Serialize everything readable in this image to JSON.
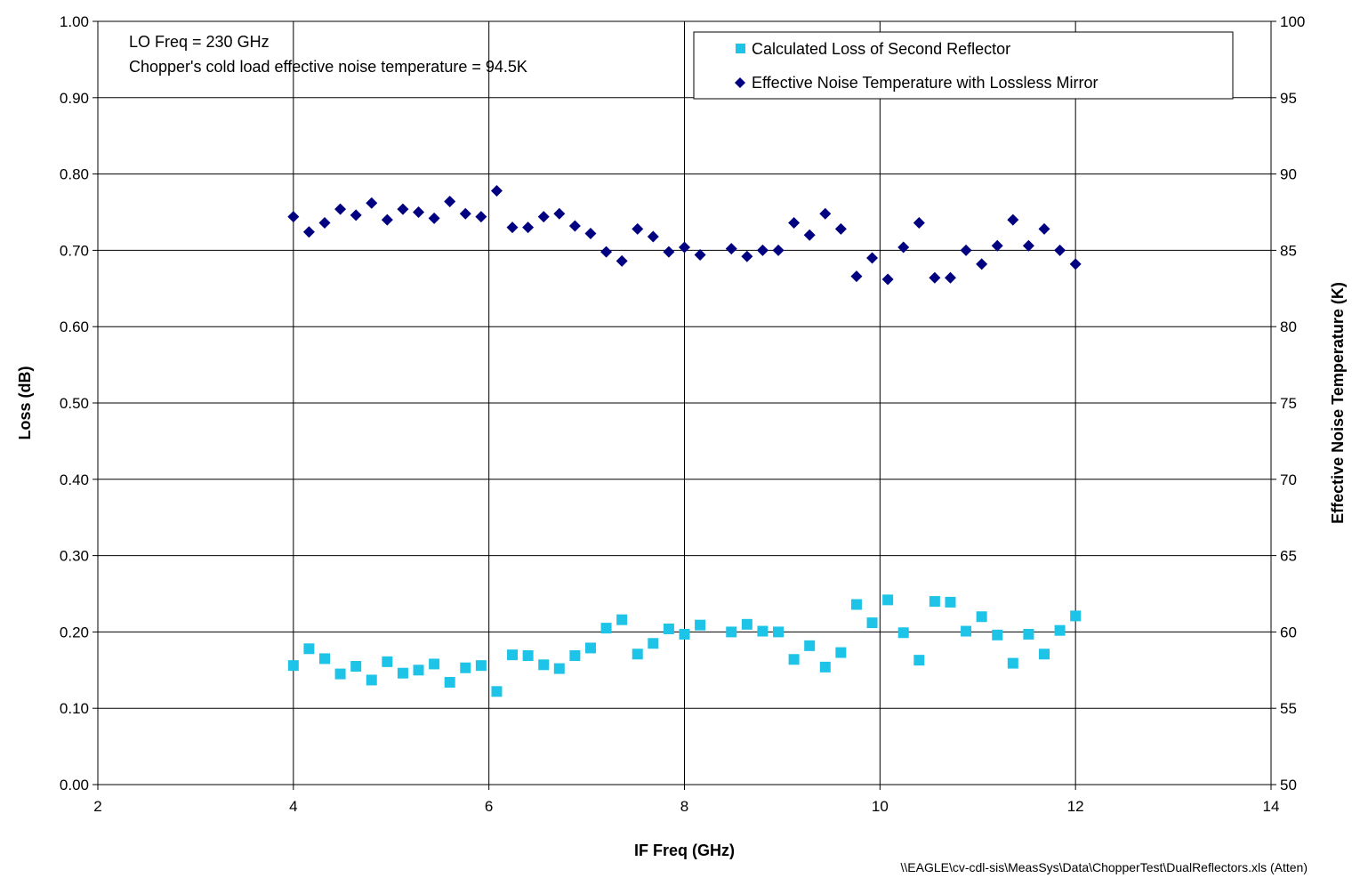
{
  "chart_data": {
    "type": "scatter",
    "title": "",
    "xlabel": "IF Freq (GHz)",
    "ylabel_left": "Loss (dB)",
    "ylabel_right": "Effective Noise Temperature (K)",
    "xlim": [
      2,
      14
    ],
    "x_ticks": [
      2,
      4,
      6,
      8,
      10,
      12,
      14
    ],
    "ylim_left": [
      0,
      1
    ],
    "y_ticks_left": [
      "0.00",
      "0.10",
      "0.20",
      "0.30",
      "0.40",
      "0.50",
      "0.60",
      "0.70",
      "0.80",
      "0.90",
      "1.00"
    ],
    "ylim_right": [
      50,
      100
    ],
    "y_ticks_right": [
      "50",
      "55",
      "60",
      "65",
      "70",
      "75",
      "80",
      "85",
      "90",
      "95",
      "100"
    ],
    "grid": true,
    "legend_position": "top-right",
    "annotations": [
      "LO Freq = 230 GHz",
      "Chopper's cold load effective noise temperature = 94.5K"
    ],
    "footer": "\\\\EAGLE\\cv-cdl-sis\\MeasSys\\Data\\ChopperTest\\DualReflectors.xls (Atten)",
    "series": [
      {
        "name": "Calculated Loss of Second Reflector",
        "axis": "left",
        "marker": "square",
        "color": "#1EC4E8",
        "x": [
          4.0,
          4.16,
          4.32,
          4.48,
          4.64,
          4.8,
          4.96,
          5.12,
          5.28,
          5.44,
          5.6,
          5.76,
          5.92,
          6.08,
          6.24,
          6.4,
          6.56,
          6.72,
          6.88,
          7.04,
          7.2,
          7.36,
          7.52,
          7.68,
          7.84,
          8.0,
          8.16,
          8.48,
          8.64,
          8.8,
          8.96,
          9.12,
          9.28,
          9.44,
          9.6,
          9.76,
          9.92,
          10.08,
          10.24,
          10.4,
          10.56,
          10.72,
          10.88,
          11.04,
          11.2,
          11.36,
          11.52,
          11.68,
          11.84,
          12.0
        ],
        "y": [
          0.156,
          0.178,
          0.165,
          0.145,
          0.155,
          0.137,
          0.161,
          0.146,
          0.15,
          0.158,
          0.134,
          0.153,
          0.156,
          0.122,
          0.17,
          0.169,
          0.157,
          0.152,
          0.169,
          0.179,
          0.205,
          0.216,
          0.171,
          0.185,
          0.204,
          0.197,
          0.209,
          0.2,
          0.21,
          0.201,
          0.2,
          0.164,
          0.182,
          0.154,
          0.173,
          0.236,
          0.212,
          0.242,
          0.199,
          0.163,
          0.24,
          0.239,
          0.201,
          0.22,
          0.196,
          0.159,
          0.197,
          0.171,
          0.202,
          0.221
        ]
      },
      {
        "name": "Effective Noise Temperature with Lossless Mirror",
        "axis": "right",
        "marker": "diamond",
        "color": "#000080",
        "x": [
          4.0,
          4.16,
          4.32,
          4.48,
          4.64,
          4.8,
          4.96,
          5.12,
          5.28,
          5.44,
          5.6,
          5.76,
          5.92,
          6.08,
          6.24,
          6.4,
          6.56,
          6.72,
          6.88,
          7.04,
          7.2,
          7.36,
          7.52,
          7.68,
          7.84,
          8.0,
          8.16,
          8.48,
          8.64,
          8.8,
          8.96,
          9.12,
          9.28,
          9.44,
          9.6,
          9.76,
          9.92,
          10.08,
          10.24,
          10.4,
          10.56,
          10.72,
          10.88,
          11.04,
          11.2,
          11.36,
          11.52,
          11.68,
          11.84,
          12.0
        ],
        "y": [
          87.2,
          86.2,
          86.8,
          87.7,
          87.3,
          88.1,
          87.0,
          87.7,
          87.5,
          87.1,
          88.2,
          87.4,
          87.2,
          88.9,
          86.5,
          86.5,
          87.2,
          87.4,
          86.6,
          86.1,
          84.9,
          84.3,
          86.4,
          85.9,
          84.9,
          85.2,
          84.7,
          85.1,
          84.6,
          85.0,
          85.0,
          86.8,
          86.0,
          87.4,
          86.4,
          83.3,
          84.5,
          83.1,
          85.2,
          86.8,
          83.2,
          83.2,
          85.0,
          84.1,
          85.3,
          87.0,
          85.3,
          86.4,
          85.0,
          84.1
        ]
      }
    ]
  }
}
